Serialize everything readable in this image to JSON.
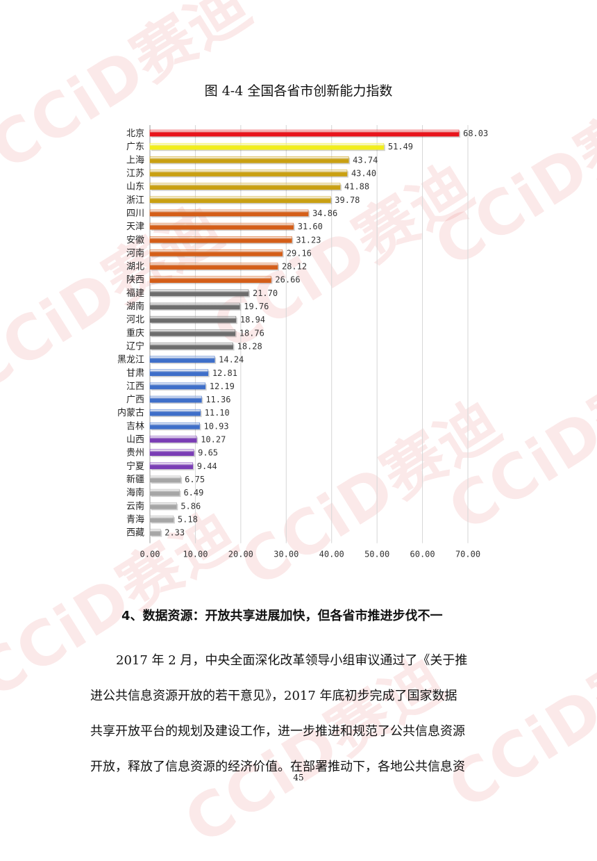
{
  "watermark_text": "CCiD赛迪",
  "chart_data": {
    "type": "bar",
    "orientation": "horizontal",
    "title": "图 4-4 全国各省市创新能力指数",
    "categories": [
      "北京",
      "广东",
      "上海",
      "江苏",
      "山东",
      "浙江",
      "四川",
      "天津",
      "安徽",
      "河南",
      "湖北",
      "陕西",
      "福建",
      "湖南",
      "河北",
      "重庆",
      "辽宁",
      "黑龙江",
      "甘肃",
      "江西",
      "广西",
      "内蒙古",
      "吉林",
      "山西",
      "贵州",
      "宁夏",
      "新疆",
      "海南",
      "云南",
      "青海",
      "西藏"
    ],
    "values": [
      68.03,
      51.49,
      43.74,
      43.4,
      41.88,
      39.78,
      34.86,
      31.6,
      31.23,
      29.16,
      28.12,
      26.66,
      21.7,
      19.76,
      18.94,
      18.76,
      18.28,
      14.24,
      12.81,
      12.19,
      11.36,
      11.1,
      10.93,
      10.27,
      9.65,
      9.44,
      6.75,
      6.49,
      5.86,
      5.18,
      2.33
    ],
    "value_labels": [
      "68.03",
      "51.49",
      "43.74",
      "43.40",
      "41.88",
      "39.78",
      "34.86",
      "31.60",
      "31.23",
      "29.16",
      "28.12",
      "26.66",
      "21.70",
      "19.76",
      "18.94",
      "18.76",
      "18.28",
      "14.24",
      "12.81",
      "12.19",
      "11.36",
      "11.10",
      "10.93",
      "10.27",
      "9.65",
      "9.44",
      "6.75",
      "6.49",
      "5.86",
      "5.18",
      "2.33"
    ],
    "bar_colors": [
      "#e8141c",
      "#f2ee1a",
      "#c9a012",
      "#c9a012",
      "#c9a012",
      "#c9a012",
      "#d45e18",
      "#d45e18",
      "#d45e18",
      "#d45e18",
      "#d45e18",
      "#d45e18",
      "#6d6d6d",
      "#6d6d6d",
      "#6d6d6d",
      "#6d6d6d",
      "#6d6d6d",
      "#3f6fc9",
      "#3f6fc9",
      "#3f6fc9",
      "#3f6fc9",
      "#3f6fc9",
      "#3f6fc9",
      "#7a3db5",
      "#7a3db5",
      "#7a3db5",
      "#a6a6a6",
      "#a6a6a6",
      "#a6a6a6",
      "#a6a6a6",
      "#a6a6a6"
    ],
    "xlim": [
      0,
      70
    ],
    "xticks": [
      "0.00",
      "10.00",
      "20.00",
      "30.00",
      "40.00",
      "50.00",
      "60.00",
      "70.00"
    ],
    "grid": true,
    "xlabel": "",
    "ylabel": ""
  },
  "section": {
    "heading": "4、数据资源：开放共享进展加快，但各省市推进步伐不一",
    "lines": [
      "2017 年 2 月，中央全面深化改革领导小组审议通过了《关于推",
      "进公共信息资源开放的若干意见》，2017 年底初步完成了国家数据",
      "共享开放平台的规划及建设工作，进一步推进和规范了公共信息资源",
      "开放，释放了信息资源的经济价值。在部署推动下，各地公共信息资"
    ]
  },
  "page_number": "45"
}
